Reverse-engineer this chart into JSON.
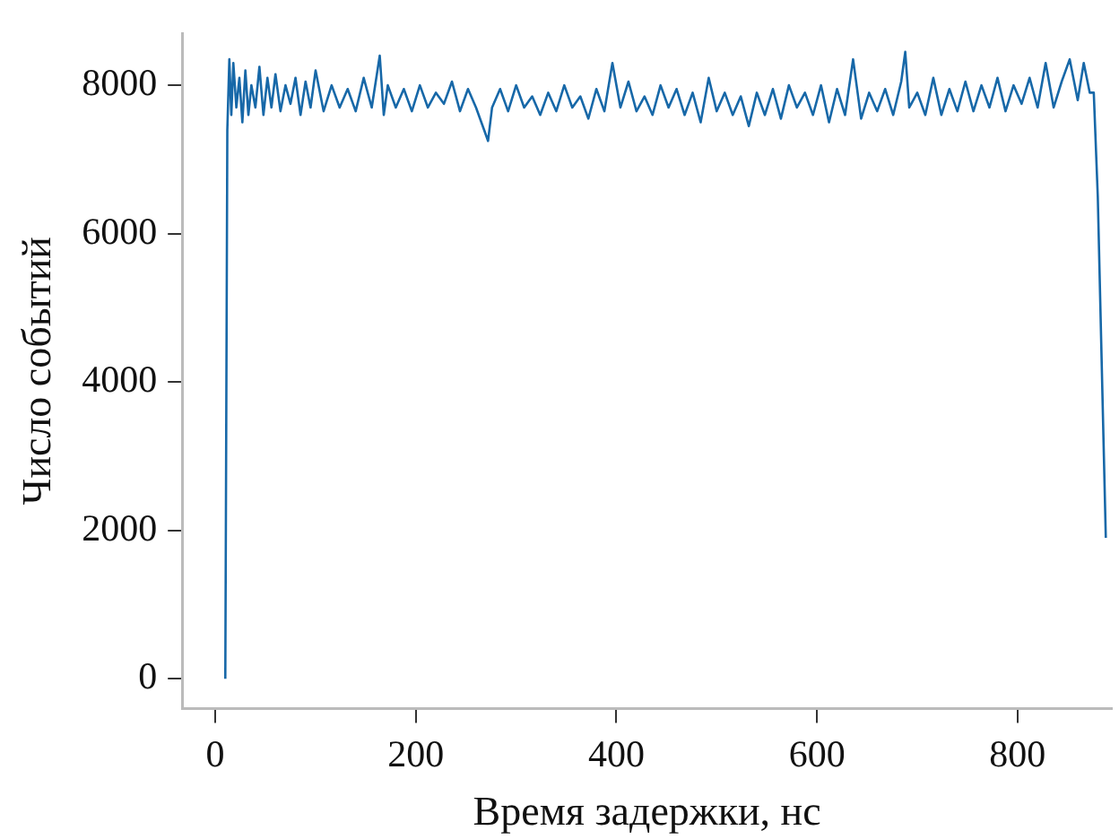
{
  "chart_data": {
    "type": "line",
    "xlabel": "Время задержки, нс",
    "ylabel": "Число событий",
    "xlim": [
      -33,
      894
    ],
    "ylim": [
      -400,
      8700
    ],
    "xticks": [
      0,
      200,
      400,
      600,
      800
    ],
    "yticks": [
      0,
      2000,
      4000,
      6000,
      8000
    ],
    "grid": false,
    "legend": false,
    "marker": "none",
    "line_style": "solid",
    "x": [
      10,
      12,
      14,
      16,
      18,
      21,
      24,
      27,
      30,
      33,
      36,
      40,
      44,
      48,
      52,
      56,
      60,
      65,
      70,
      75,
      80,
      85,
      90,
      95,
      100,
      108,
      116,
      124,
      132,
      140,
      148,
      156,
      164,
      168,
      172,
      180,
      188,
      196,
      204,
      212,
      220,
      228,
      236,
      244,
      252,
      260,
      268,
      272,
      276,
      284,
      292,
      300,
      308,
      316,
      324,
      332,
      340,
      348,
      356,
      364,
      372,
      380,
      388,
      396,
      404,
      412,
      420,
      428,
      436,
      444,
      452,
      460,
      468,
      476,
      484,
      492,
      500,
      508,
      516,
      524,
      532,
      540,
      548,
      556,
      564,
      572,
      580,
      588,
      596,
      604,
      612,
      620,
      628,
      636,
      644,
      652,
      660,
      668,
      676,
      684,
      688,
      692,
      700,
      708,
      716,
      724,
      732,
      740,
      748,
      756,
      764,
      772,
      780,
      788,
      796,
      804,
      812,
      820,
      828,
      836,
      844,
      852,
      860,
      866,
      872,
      876,
      880,
      884,
      888
    ],
    "series": [
      {
        "color": "#1768a8",
        "values": [
          0,
          7400,
          8350,
          7600,
          8300,
          7700,
          8100,
          7500,
          8200,
          7600,
          8000,
          7700,
          8250,
          7600,
          8100,
          7700,
          8150,
          7650,
          8000,
          7750,
          8100,
          7600,
          8050,
          7700,
          8200,
          7650,
          8000,
          7700,
          7950,
          7650,
          8100,
          7700,
          8400,
          7600,
          8000,
          7700,
          7950,
          7650,
          8000,
          7700,
          7900,
          7750,
          8050,
          7650,
          7950,
          7700,
          7400,
          7250,
          7700,
          7950,
          7650,
          8000,
          7700,
          7850,
          7600,
          7900,
          7650,
          8000,
          7700,
          7850,
          7550,
          7950,
          7650,
          8300,
          7700,
          8050,
          7650,
          7850,
          7600,
          8000,
          7700,
          7950,
          7600,
          7900,
          7500,
          8100,
          7650,
          7900,
          7600,
          7850,
          7450,
          7900,
          7600,
          7950,
          7550,
          8000,
          7700,
          7900,
          7600,
          8000,
          7500,
          7950,
          7600,
          8350,
          7550,
          7900,
          7650,
          7950,
          7600,
          8050,
          8450,
          7700,
          7900,
          7600,
          8100,
          7600,
          7950,
          7650,
          8050,
          7650,
          8000,
          7700,
          8100,
          7650,
          8000,
          7750,
          8100,
          7700,
          8300,
          7700,
          8050,
          8350,
          7800,
          8300,
          7900,
          7900,
          6500,
          4200,
          1900
        ]
      }
    ]
  }
}
